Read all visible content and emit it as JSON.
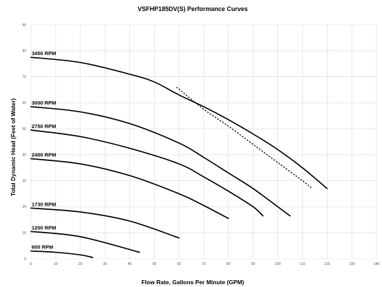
{
  "chart_data": {
    "type": "line",
    "title": "VSFHP185DV(S) Performance Curves",
    "xlabel": "Flow Rate, Gallons Per Minute (GPM)",
    "ylabel": "Total Dynamic Head (Feet of Water)",
    "xlim": [
      0,
      140
    ],
    "ylim": [
      0,
      90
    ],
    "x_ticks": [
      "0",
      "10",
      "20",
      "30",
      "40",
      "50",
      "60",
      "70",
      "80",
      "90",
      "100",
      "110",
      "120",
      "130",
      "140"
    ],
    "y_ticks": [
      "0",
      "10",
      "20",
      "30",
      "40",
      "50",
      "60",
      "70",
      "80",
      "90"
    ],
    "grid": true,
    "series": [
      {
        "name": "3450 RPM",
        "x": [
          0,
          20,
          40,
          50,
          60,
          70,
          80,
          90,
          100,
          110,
          120
        ],
        "y": [
          77.5,
          75.5,
          71,
          68,
          63,
          58.5,
          53.5,
          48,
          42,
          35,
          27
        ]
      },
      {
        "name": "3000 RPM",
        "x": [
          0,
          20,
          40,
          60,
          70,
          80,
          90,
          100,
          105
        ],
        "y": [
          58.5,
          56.5,
          52,
          44.5,
          39,
          33,
          27,
          20,
          16.5
        ]
      },
      {
        "name": "2750 RPM",
        "x": [
          0,
          20,
          40,
          60,
          70,
          80,
          90,
          94
        ],
        "y": [
          49.5,
          47,
          42.5,
          36.5,
          31.5,
          26,
          20,
          16.5
        ]
      },
      {
        "name": "2400 RPM",
        "x": [
          0,
          20,
          40,
          60,
          70,
          80
        ],
        "y": [
          38.5,
          36.5,
          32,
          25,
          20.5,
          15.5
        ]
      },
      {
        "name": "1730 RPM",
        "x": [
          0,
          20,
          40,
          60
        ],
        "y": [
          19.5,
          18,
          14.5,
          8
        ]
      },
      {
        "name": "1200 RPM",
        "x": [
          0,
          20,
          44
        ],
        "y": [
          10.5,
          8.5,
          2.5
        ]
      },
      {
        "name": "600 RPM",
        "x": [
          0,
          10,
          20,
          25
        ],
        "y": [
          3,
          2.5,
          1.5,
          0.5
        ]
      },
      {
        "x": [
          59,
          70,
          80,
          90,
          100,
          110,
          114
        ],
        "y": [
          66,
          57.5,
          51,
          44,
          37,
          30,
          27
        ],
        "style": "dotted"
      }
    ]
  }
}
